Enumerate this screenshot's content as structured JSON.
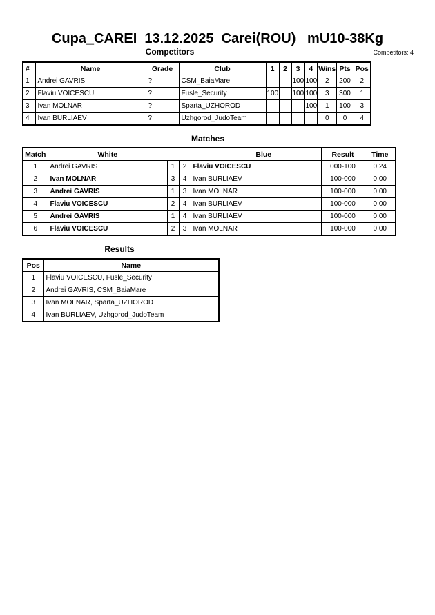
{
  "title": "Cupa_CAREI  13.12.2025  Carei(ROU)   mU10-38Kg",
  "competitors": {
    "heading": "Competitors",
    "count_label": "Competitors: 4",
    "columns": [
      "#",
      "Name",
      "Grade",
      "Club",
      "1",
      "2",
      "3",
      "4",
      "Wins",
      "Pts",
      "Pos"
    ],
    "rows": [
      [
        "1",
        "Andrei GAVRIS",
        "?",
        "CSM_BaiaMare",
        "",
        "",
        "100",
        "100",
        "2",
        "200",
        "2"
      ],
      [
        "2",
        "Flaviu VOICESCU",
        "?",
        "Fusle_Security",
        "100",
        "",
        "100",
        "100",
        "3",
        "300",
        "1"
      ],
      [
        "3",
        "Ivan MOLNAR",
        "?",
        "Sparta_UZHOROD",
        "",
        "",
        "",
        "100",
        "1",
        "100",
        "3"
      ],
      [
        "4",
        "Ivan BURLIAEV",
        "?",
        "Uzhgorod_JudoTeam",
        "",
        "",
        "",
        "",
        "0",
        "0",
        "4"
      ]
    ]
  },
  "matches": {
    "heading": "Matches",
    "columns": [
      "Match",
      "White",
      "Blue",
      "Result",
      "Time"
    ],
    "rows": [
      {
        "no": "1",
        "white": "Andrei GAVRIS",
        "w": "1",
        "b": "2",
        "blue": "Flaviu VOICESCU",
        "result": "000-100",
        "time": "0:24",
        "winner": "blue"
      },
      {
        "no": "2",
        "white": "Ivan MOLNAR",
        "w": "3",
        "b": "4",
        "blue": "Ivan BURLIAEV",
        "result": "100-000",
        "time": "0:00",
        "winner": "white"
      },
      {
        "no": "3",
        "white": "Andrei GAVRIS",
        "w": "1",
        "b": "3",
        "blue": "Ivan MOLNAR",
        "result": "100-000",
        "time": "0:00",
        "winner": "white"
      },
      {
        "no": "4",
        "white": "Flaviu VOICESCU",
        "w": "2",
        "b": "4",
        "blue": "Ivan BURLIAEV",
        "result": "100-000",
        "time": "0:00",
        "winner": "white"
      },
      {
        "no": "5",
        "white": "Andrei GAVRIS",
        "w": "1",
        "b": "4",
        "blue": "Ivan BURLIAEV",
        "result": "100-000",
        "time": "0:00",
        "winner": "white"
      },
      {
        "no": "6",
        "white": "Flaviu VOICESCU",
        "w": "2",
        "b": "3",
        "blue": "Ivan MOLNAR",
        "result": "100-000",
        "time": "0:00",
        "winner": "white"
      }
    ]
  },
  "results": {
    "heading": "Results",
    "columns": [
      "Pos",
      "Name"
    ],
    "rows": [
      [
        "1",
        "Flaviu VOICESCU, Fusle_Security"
      ],
      [
        "2",
        "Andrei GAVRIS, CSM_BaiaMare"
      ],
      [
        "3",
        "Ivan MOLNAR, Sparta_UZHOROD"
      ],
      [
        "4",
        "Ivan BURLIAEV, Uzhgorod_JudoTeam"
      ]
    ]
  }
}
